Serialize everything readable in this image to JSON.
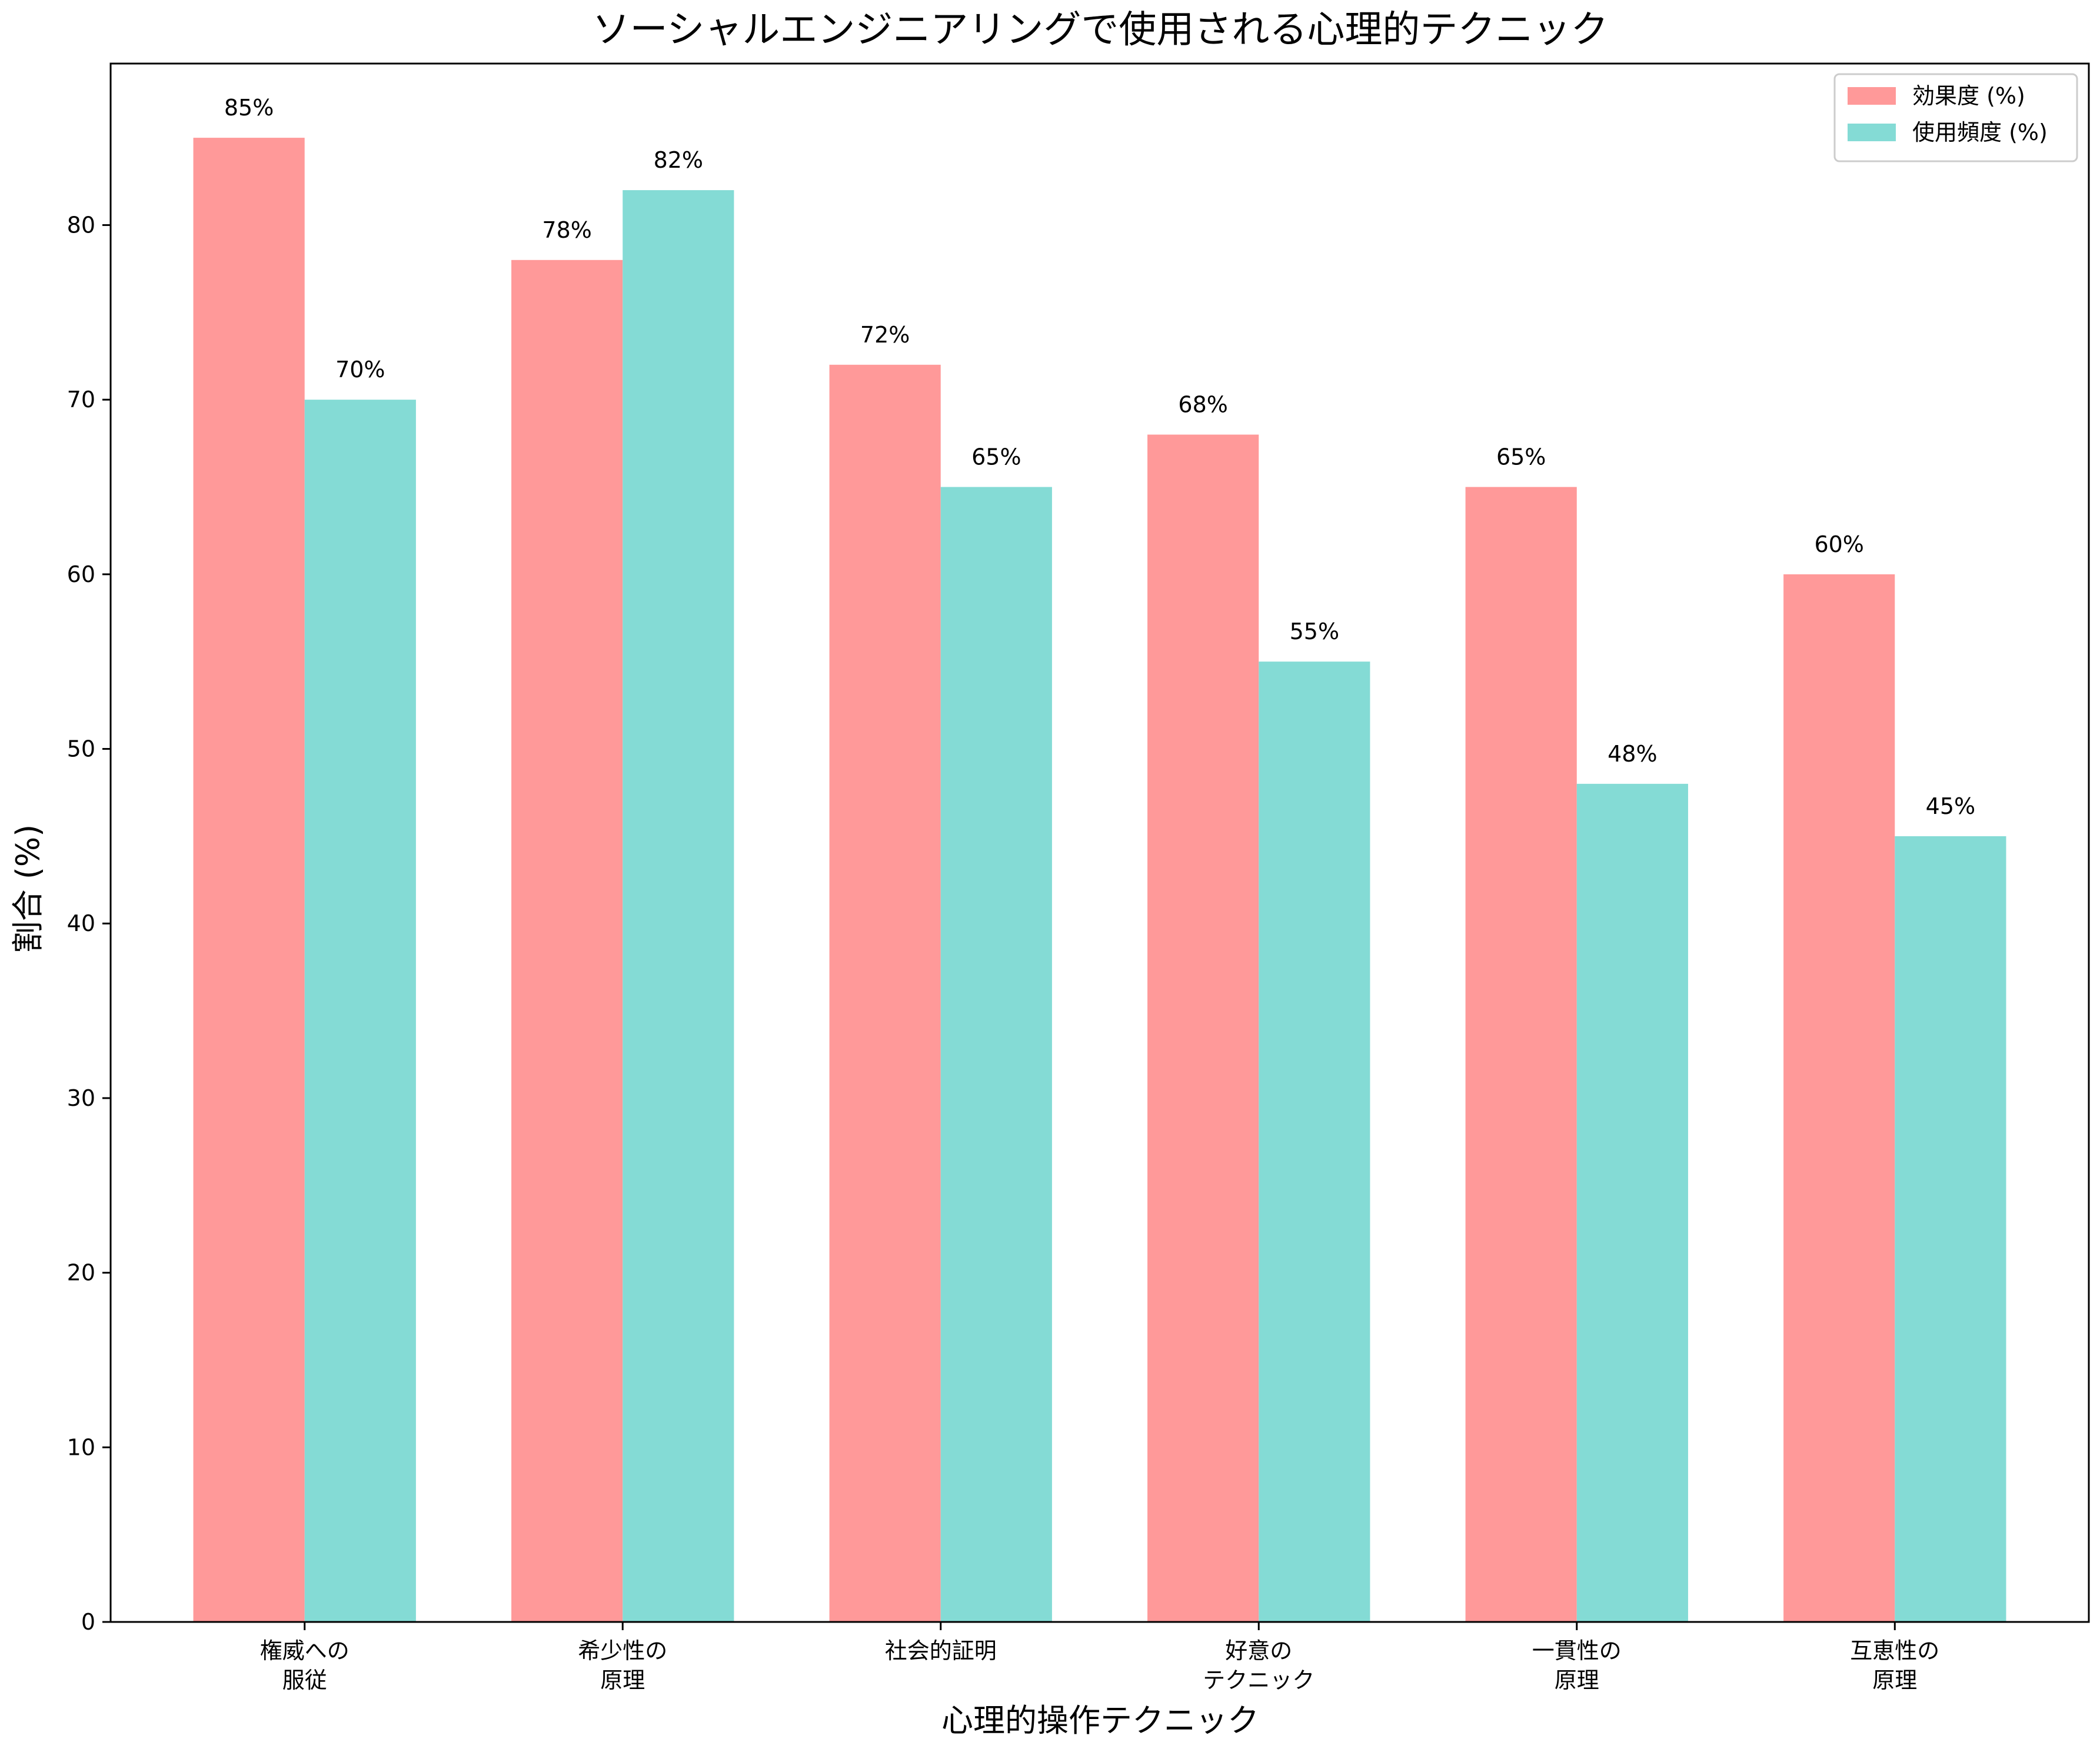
{
  "chart_data": {
    "type": "bar",
    "title": "ソーシャルエンジニアリングで使用される心理的テクニック",
    "xlabel": "心理的操作テクニック",
    "ylabel": "割合 (%)",
    "ylim": [
      0,
      89.25
    ],
    "yticks": [
      "0",
      "10",
      "20",
      "30",
      "40",
      "50",
      "60",
      "70",
      "80"
    ],
    "categories": [
      [
        "権威への",
        "服従"
      ],
      [
        "希少性の",
        "原理"
      ],
      [
        "社会的証明"
      ],
      [
        "好意の",
        "テクニック"
      ],
      [
        "一貫性の",
        "原理"
      ],
      [
        "互恵性の",
        "原理"
      ]
    ],
    "series": [
      {
        "name": "効果度 (%)",
        "color": "#ff9999",
        "values": [
          85,
          78,
          72,
          68,
          65,
          60
        ],
        "labels": [
          "85%",
          "78%",
          "72%",
          "68%",
          "65%",
          "60%"
        ]
      },
      {
        "name": "使用頻度 (%)",
        "color": "#84dbd5",
        "values": [
          70,
          82,
          65,
          55,
          48,
          45
        ],
        "labels": [
          "70%",
          "82%",
          "65%",
          "55%",
          "48%",
          "45%"
        ]
      }
    ],
    "legend_position": "top-right",
    "grid": false
  }
}
